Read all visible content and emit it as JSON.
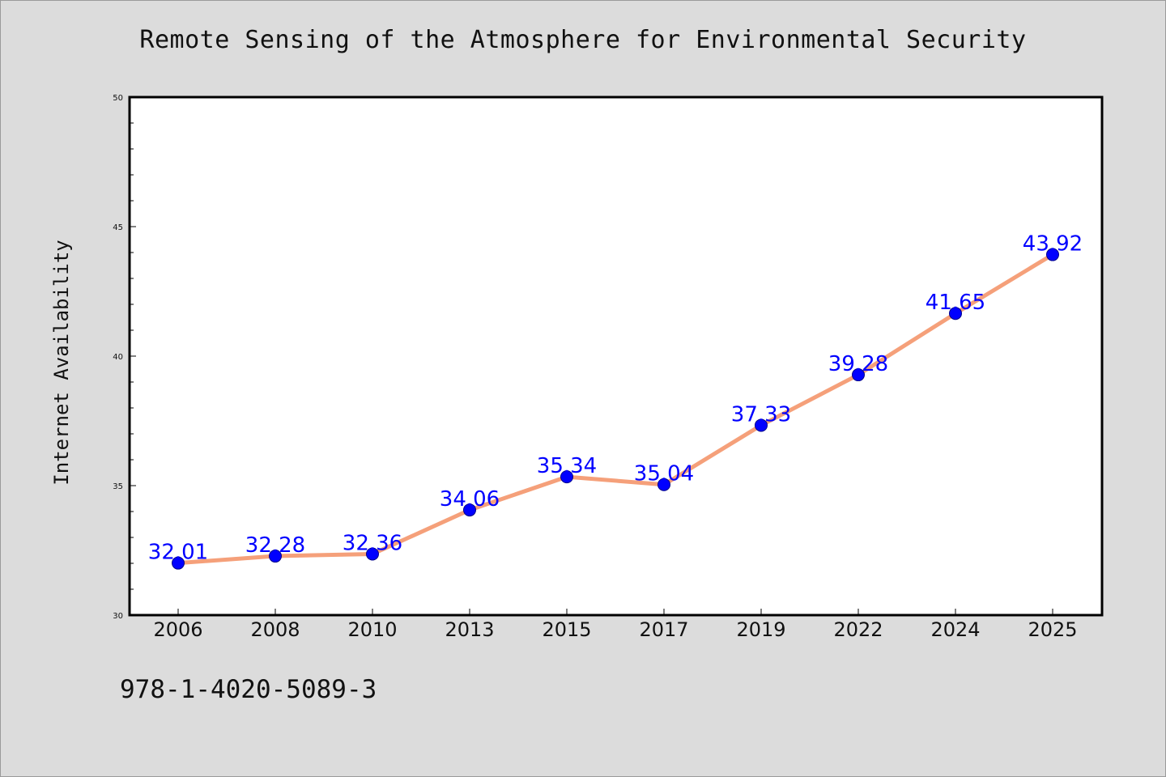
{
  "title": "Remote Sensing of the Atmosphere for Environmental Security",
  "footer": "978-1-4020-5089-3",
  "colors": {
    "background": "#dcdcdc",
    "plot_background": "#ffffff",
    "line": "#f5a07a",
    "marker": "#0000ff",
    "data_label": "#0000ff"
  },
  "chart_data": {
    "type": "line",
    "title": "Remote Sensing of the Atmosphere for Environmental Security",
    "xlabel": "",
    "ylabel": "Internet Availability",
    "categories": [
      "2006",
      "2008",
      "2010",
      "2013",
      "2015",
      "2017",
      "2019",
      "2022",
      "2024",
      "2025"
    ],
    "values": [
      32.01,
      32.28,
      32.36,
      34.06,
      35.34,
      35.04,
      37.33,
      39.28,
      41.65,
      43.92
    ],
    "data_labels": [
      "32.01",
      "32.28",
      "32.36",
      "34.06",
      "35.34",
      "35.04",
      "37.33",
      "39.28",
      "41.65",
      "43.92"
    ],
    "ylim": [
      30,
      50
    ],
    "yticks": [
      30,
      35,
      40,
      45,
      50
    ],
    "grid": false,
    "legend": "none"
  }
}
